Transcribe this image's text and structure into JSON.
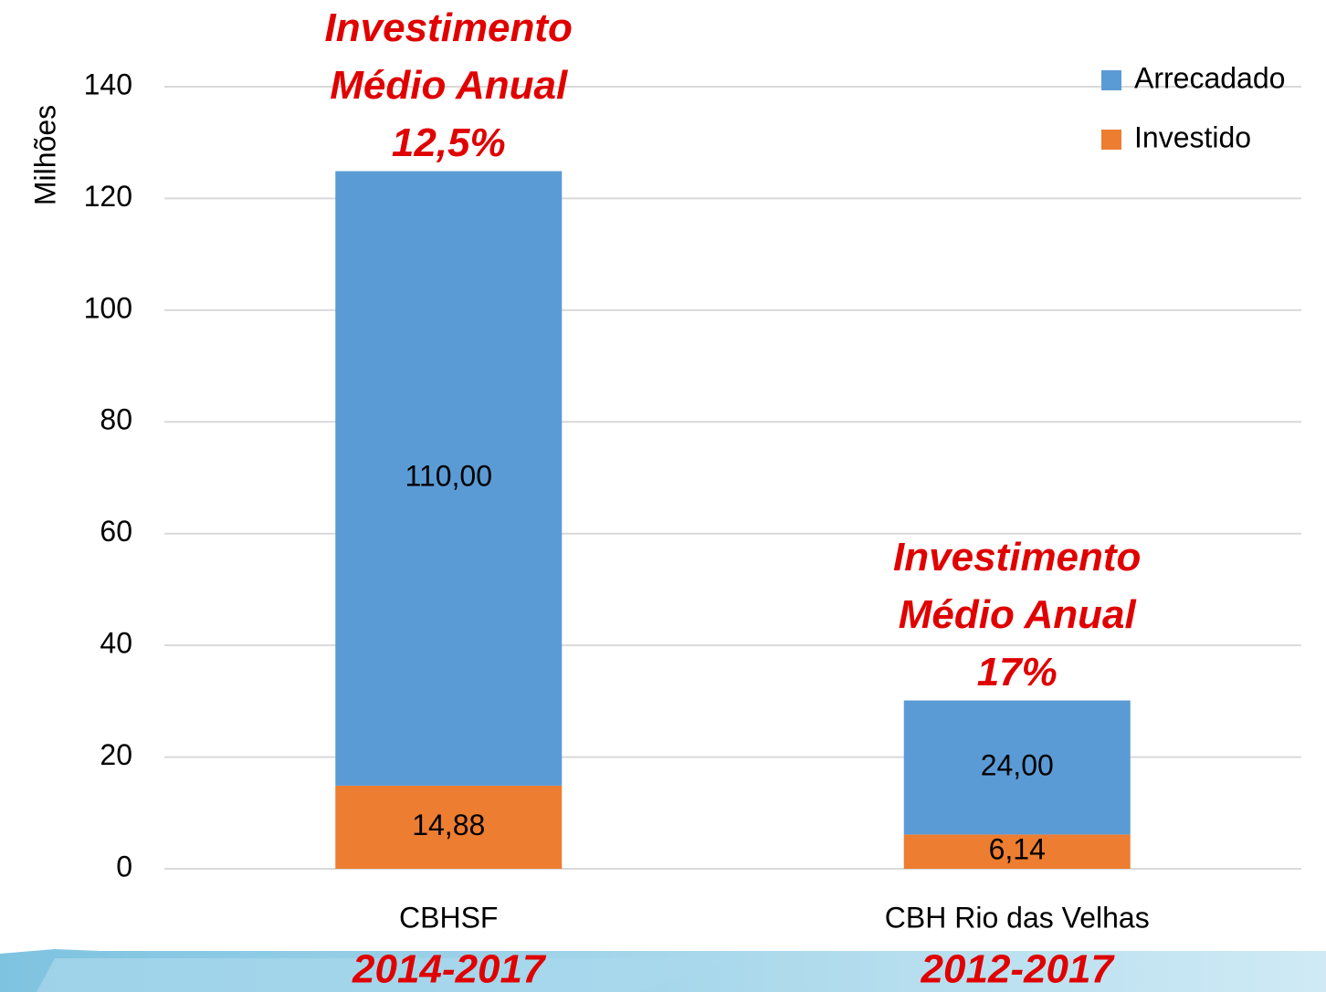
{
  "chart_data": {
    "type": "stacked_bar",
    "y_label": "Milhões",
    "categories": [
      "CBHSF",
      "CBH Rio das Velhas"
    ],
    "series": [
      {
        "name": "Investido",
        "color": "#ed7d31",
        "values": [
          14.88,
          6.14
        ],
        "value_labels": [
          "14,88",
          "6,14"
        ]
      },
      {
        "name": "Arrecadado",
        "color": "#5b9bd5",
        "values": [
          110.0,
          24.0
        ],
        "value_labels": [
          "110,00",
          "24,00"
        ]
      }
    ],
    "ylim": [
      0,
      140
    ],
    "yticks": [
      0,
      20,
      40,
      60,
      80,
      100,
      120,
      140
    ],
    "grid": true,
    "legend": "top-right",
    "annotations": [
      {
        "lines": [
          "Investimento",
          "Médio Anual",
          "12,5%"
        ]
      },
      {
        "lines": [
          "Investimento",
          "Médio Anual",
          "17%"
        ]
      }
    ],
    "periods": [
      "2014-2017",
      "2012-2017"
    ]
  }
}
